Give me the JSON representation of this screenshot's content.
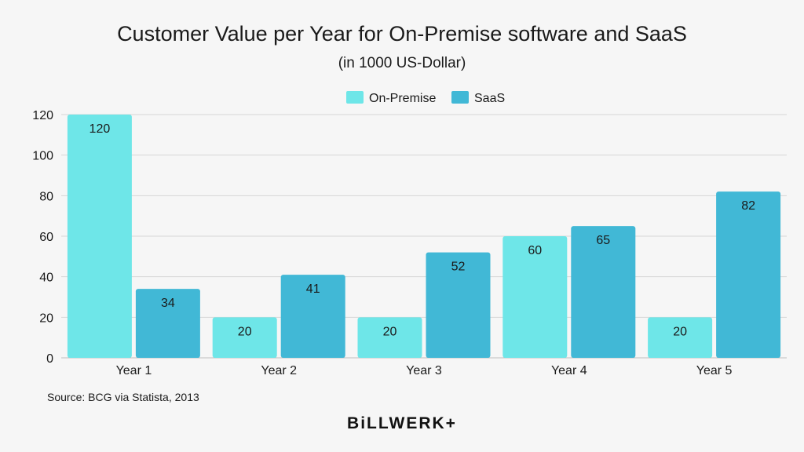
{
  "colors": {
    "on_premise": "#6ee6e8",
    "saas": "#41b8d6",
    "grid": "#d6d6d6",
    "background": "#f6f6f6"
  },
  "footer": {
    "source": "Source: BCG via Statista, 2013",
    "brand": "BiLLWERK+"
  },
  "chart_data": {
    "type": "bar",
    "title": "Customer Value per Year for On-Premise software and SaaS",
    "subtitle": "(in 1000 US-Dollar)",
    "categories": [
      "Year 1",
      "Year 2",
      "Year 3",
      "Year 4",
      "Year 5"
    ],
    "series": [
      {
        "name": "On-Premise",
        "values": [
          120,
          20,
          20,
          60,
          20
        ],
        "color": "#6ee6e8"
      },
      {
        "name": "SaaS",
        "values": [
          34,
          41,
          52,
          65,
          82
        ],
        "color": "#41b8d6"
      }
    ],
    "ylim": [
      0,
      120
    ],
    "yticks": [
      0,
      20,
      40,
      60,
      80,
      100,
      120
    ],
    "grid": true,
    "legend_position": "top-center",
    "data_labels": true
  }
}
